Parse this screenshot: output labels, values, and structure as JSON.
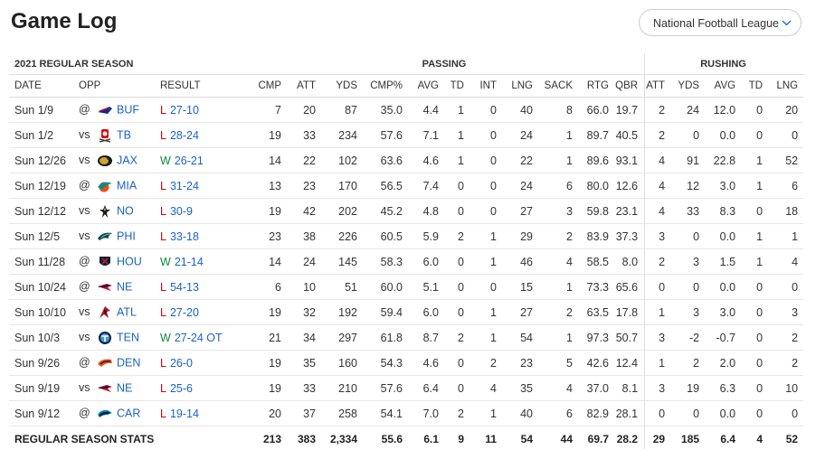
{
  "page": {
    "title": "Game Log"
  },
  "league_select": {
    "label": "National Football League",
    "icon": "chevron-down-icon"
  },
  "table": {
    "season_label": "2021 REGULAR SEASON",
    "group_passing": "PASSING",
    "group_rushing": "RUSHING",
    "columns": [
      "DATE",
      "OPP",
      "RESULT",
      "CMP",
      "ATT",
      "YDS",
      "CMP%",
      "AVG",
      "TD",
      "INT",
      "LNG",
      "SACK",
      "RTG",
      "QBR",
      "ATT",
      "YDS",
      "AVG",
      "TD",
      "LNG"
    ],
    "rows": [
      {
        "date": "Sun 1/9",
        "ha": "@",
        "team": "BUF",
        "logo": "bills-logo",
        "wl": "L",
        "score": "27-10",
        "cells": [
          "7",
          "20",
          "87",
          "35.0",
          "4.4",
          "1",
          "0",
          "40",
          "8",
          "66.0",
          "19.7",
          "2",
          "24",
          "12.0",
          "0",
          "20"
        ]
      },
      {
        "date": "Sun 1/2",
        "ha": "vs",
        "team": "TB",
        "logo": "buccaneers-logo",
        "wl": "L",
        "score": "28-24",
        "cells": [
          "19",
          "33",
          "234",
          "57.6",
          "7.1",
          "1",
          "0",
          "24",
          "1",
          "89.7",
          "40.5",
          "2",
          "0",
          "0.0",
          "0",
          "0"
        ]
      },
      {
        "date": "Sun 12/26",
        "ha": "vs",
        "team": "JAX",
        "logo": "jaguars-logo",
        "wl": "W",
        "score": "26-21",
        "cells": [
          "14",
          "22",
          "102",
          "63.6",
          "4.6",
          "1",
          "0",
          "22",
          "1",
          "89.6",
          "93.1",
          "4",
          "91",
          "22.8",
          "1",
          "52"
        ]
      },
      {
        "date": "Sun 12/19",
        "ha": "@",
        "team": "MIA",
        "logo": "dolphins-logo",
        "wl": "L",
        "score": "31-24",
        "cells": [
          "13",
          "23",
          "170",
          "56.5",
          "7.4",
          "0",
          "0",
          "24",
          "6",
          "80.0",
          "12.6",
          "4",
          "12",
          "3.0",
          "1",
          "6"
        ]
      },
      {
        "date": "Sun 12/12",
        "ha": "vs",
        "team": "NO",
        "logo": "saints-logo",
        "wl": "L",
        "score": "30-9",
        "cells": [
          "19",
          "42",
          "202",
          "45.2",
          "4.8",
          "0",
          "0",
          "27",
          "3",
          "59.8",
          "23.1",
          "4",
          "33",
          "8.3",
          "0",
          "18"
        ]
      },
      {
        "date": "Sun 12/5",
        "ha": "vs",
        "team": "PHI",
        "logo": "eagles-logo",
        "wl": "L",
        "score": "33-18",
        "cells": [
          "23",
          "38",
          "226",
          "60.5",
          "5.9",
          "2",
          "1",
          "29",
          "2",
          "83.9",
          "37.3",
          "3",
          "0",
          "0.0",
          "1",
          "1"
        ]
      },
      {
        "date": "Sun 11/28",
        "ha": "@",
        "team": "HOU",
        "logo": "texans-logo",
        "wl": "W",
        "score": "21-14",
        "cells": [
          "14",
          "24",
          "145",
          "58.3",
          "6.0",
          "0",
          "1",
          "46",
          "4",
          "58.5",
          "8.0",
          "2",
          "3",
          "1.5",
          "1",
          "4"
        ]
      },
      {
        "date": "Sun 10/24",
        "ha": "@",
        "team": "NE",
        "logo": "patriots-logo",
        "wl": "L",
        "score": "54-13",
        "cells": [
          "6",
          "10",
          "51",
          "60.0",
          "5.1",
          "0",
          "0",
          "15",
          "1",
          "73.3",
          "65.6",
          "0",
          "0",
          "0.0",
          "0",
          "0"
        ]
      },
      {
        "date": "Sun 10/10",
        "ha": "vs",
        "team": "ATL",
        "logo": "falcons-logo",
        "wl": "L",
        "score": "27-20",
        "cells": [
          "19",
          "32",
          "192",
          "59.4",
          "6.0",
          "0",
          "1",
          "27",
          "2",
          "63.5",
          "17.8",
          "1",
          "3",
          "3.0",
          "0",
          "3"
        ]
      },
      {
        "date": "Sun 10/3",
        "ha": "vs",
        "team": "TEN",
        "logo": "titans-logo",
        "wl": "W",
        "score": "27-24 OT",
        "cells": [
          "21",
          "34",
          "297",
          "61.8",
          "8.7",
          "2",
          "1",
          "54",
          "1",
          "97.3",
          "50.7",
          "3",
          "-2",
          "-0.7",
          "0",
          "2"
        ]
      },
      {
        "date": "Sun 9/26",
        "ha": "@",
        "team": "DEN",
        "logo": "broncos-logo",
        "wl": "L",
        "score": "26-0",
        "cells": [
          "19",
          "35",
          "160",
          "54.3",
          "4.6",
          "0",
          "2",
          "23",
          "5",
          "42.6",
          "12.4",
          "1",
          "2",
          "2.0",
          "0",
          "2"
        ]
      },
      {
        "date": "Sun 9/19",
        "ha": "vs",
        "team": "NE",
        "logo": "patriots-logo",
        "wl": "L",
        "score": "25-6",
        "cells": [
          "19",
          "33",
          "210",
          "57.6",
          "6.4",
          "0",
          "4",
          "35",
          "4",
          "37.0",
          "8.1",
          "3",
          "19",
          "6.3",
          "0",
          "10"
        ]
      },
      {
        "date": "Sun 9/12",
        "ha": "@",
        "team": "CAR",
        "logo": "panthers-logo",
        "wl": "L",
        "score": "19-14",
        "cells": [
          "20",
          "37",
          "258",
          "54.1",
          "7.0",
          "2",
          "1",
          "40",
          "6",
          "82.9",
          "28.1",
          "0",
          "0",
          "0.0",
          "0",
          "0"
        ]
      }
    ],
    "totals": {
      "label": "REGULAR SEASON STATS",
      "cells": [
        "213",
        "383",
        "2,334",
        "55.6",
        "6.1",
        "9",
        "11",
        "54",
        "44",
        "69.7",
        "28.2",
        "29",
        "185",
        "6.4",
        "4",
        "52"
      ]
    }
  },
  "colors": {
    "loss": "#d0021b",
    "win": "#0a8a3a",
    "link": "#1a63c9",
    "border": "#dddddd"
  }
}
